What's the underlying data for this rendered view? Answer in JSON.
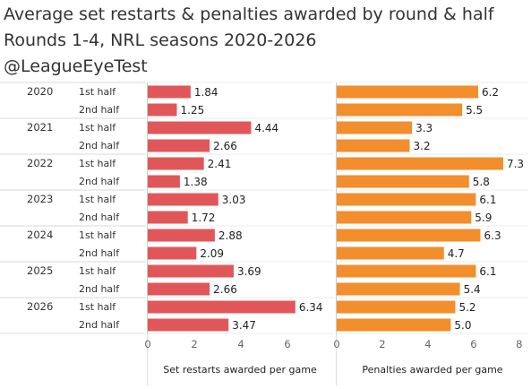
{
  "title_line1": "Average set restarts & penalties awarded by round & half",
  "title_line2": "Rounds 1-4, NRL seasons 2020-2026",
  "title_line3": "@LeagueEyeTest",
  "colors": {
    "restarts": "#e15759",
    "penalties": "#f28e2b"
  },
  "chart_data": [
    {
      "type": "bar",
      "orientation": "horizontal",
      "categories": [
        [
          "2020",
          "1st half"
        ],
        [
          "2020",
          "2nd half"
        ],
        [
          "2021",
          "1st half"
        ],
        [
          "2021",
          "2nd half"
        ],
        [
          "2022",
          "1st half"
        ],
        [
          "2022",
          "2nd half"
        ],
        [
          "2023",
          "1st half"
        ],
        [
          "2023",
          "2nd half"
        ],
        [
          "2024",
          "1st half"
        ],
        [
          "2024",
          "2nd half"
        ],
        [
          "2025",
          "1st half"
        ],
        [
          "2025",
          "2nd half"
        ],
        [
          "2026",
          "1st half"
        ],
        [
          "2026",
          "2nd half"
        ]
      ],
      "values": [
        1.84,
        1.25,
        4.44,
        2.66,
        2.41,
        1.38,
        3.03,
        1.72,
        2.88,
        2.09,
        3.69,
        2.66,
        6.34,
        3.47
      ],
      "labels": [
        "1.84",
        "1.25",
        "4.44",
        "2.66",
        "2.41",
        "1.38",
        "3.03",
        "1.72",
        "2.88",
        "2.09",
        "3.69",
        "2.66",
        "6.34",
        "3.47"
      ],
      "xlabel": "Set restarts awarded per game",
      "xlim": [
        0,
        8
      ],
      "ticks": [
        0,
        2,
        4,
        6
      ],
      "tick_labels": [
        "0",
        "2",
        "4",
        "6"
      ]
    },
    {
      "type": "bar",
      "orientation": "horizontal",
      "categories": [
        [
          "2020",
          "1st half"
        ],
        [
          "2020",
          "2nd half"
        ],
        [
          "2021",
          "1st half"
        ],
        [
          "2021",
          "2nd half"
        ],
        [
          "2022",
          "1st half"
        ],
        [
          "2022",
          "2nd half"
        ],
        [
          "2023",
          "1st half"
        ],
        [
          "2023",
          "2nd half"
        ],
        [
          "2024",
          "1st half"
        ],
        [
          "2024",
          "2nd half"
        ],
        [
          "2025",
          "1st half"
        ],
        [
          "2025",
          "2nd half"
        ],
        [
          "2026",
          "1st half"
        ],
        [
          "2026",
          "2nd half"
        ]
      ],
      "values": [
        6.2,
        5.5,
        3.3,
        3.2,
        7.3,
        5.8,
        6.1,
        5.9,
        6.3,
        4.7,
        6.1,
        5.4,
        5.2,
        5.0
      ],
      "labels": [
        "6.2",
        "5.5",
        "3.3",
        "3.2",
        "7.3",
        "5.8",
        "6.1",
        "5.9",
        "6.3",
        "4.7",
        "6.1",
        "5.4",
        "5.2",
        "5.0"
      ],
      "xlabel": "Penalties awarded per game",
      "xlim": [
        0,
        8.4
      ],
      "ticks": [
        0,
        2,
        4,
        6,
        8
      ],
      "tick_labels": [
        "0",
        "2",
        "4",
        "6",
        "8"
      ]
    }
  ]
}
